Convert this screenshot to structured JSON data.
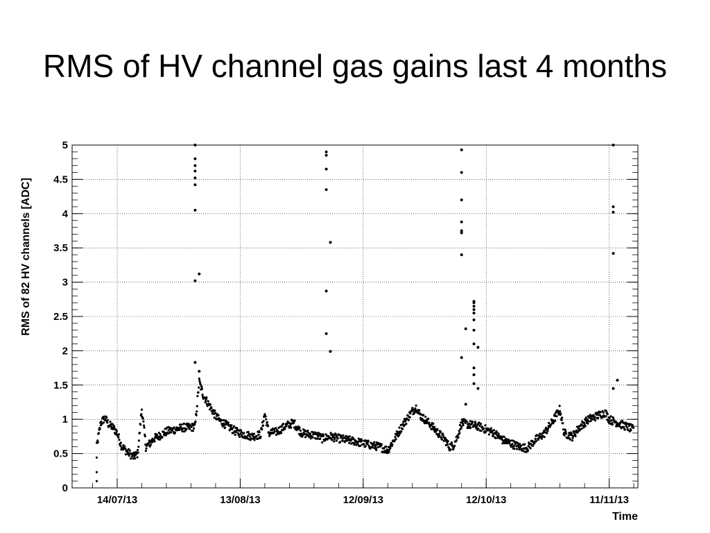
{
  "slide": {
    "title": "RMS of HV channel gas gains last 4 months"
  },
  "chart_data": {
    "type": "scatter",
    "title": "",
    "xlabel": "Time",
    "ylabel": "RMS of 82 HV channels [ADC]",
    "x_type": "date",
    "xlim": [
      "2013-07-03",
      "2013-11-18"
    ],
    "ylim": [
      0,
      5
    ],
    "yticks": [
      0,
      0.5,
      1,
      1.5,
      2,
      2.5,
      3,
      3.5,
      4,
      4.5,
      5
    ],
    "ytick_labels": [
      "0",
      "0.5",
      "1",
      "1.5",
      "2",
      "2.5",
      "3",
      "3.5",
      "4",
      "4.5",
      "5"
    ],
    "xticks": [
      "2013-07-14",
      "2013-08-13",
      "2013-09-12",
      "2013-10-12",
      "2013-11-11"
    ],
    "xtick_labels": [
      "14/07/13",
      "13/08/13",
      "12/09/13",
      "12/10/13",
      "11/11/13"
    ],
    "grid": true,
    "marker_color": "#000000",
    "series": [
      {
        "baseline": [
          [
            "2013-07-09",
            0.08
          ],
          [
            "2013-07-09",
            0.6
          ],
          [
            "2013-07-10",
            0.95
          ],
          [
            "2013-07-11",
            1.02
          ],
          [
            "2013-07-12",
            0.92
          ],
          [
            "2013-07-13",
            0.88
          ],
          [
            "2013-07-14",
            0.8
          ],
          [
            "2013-07-15",
            0.62
          ],
          [
            "2013-07-16",
            0.55
          ],
          [
            "2013-07-17",
            0.5
          ],
          [
            "2013-07-18",
            0.45
          ],
          [
            "2013-07-19",
            0.5
          ],
          [
            "2013-07-20",
            1.15
          ],
          [
            "2013-07-21",
            0.6
          ],
          [
            "2013-07-22",
            0.65
          ],
          [
            "2013-07-23",
            0.72
          ],
          [
            "2013-07-24",
            0.75
          ],
          [
            "2013-07-26",
            0.82
          ],
          [
            "2013-07-28",
            0.85
          ],
          [
            "2013-07-30",
            0.88
          ],
          [
            "2013-08-01",
            0.88
          ],
          [
            "2013-08-02",
            0.9
          ],
          [
            "2013-08-03",
            1.55
          ],
          [
            "2013-08-04",
            1.35
          ],
          [
            "2013-08-05",
            1.25
          ],
          [
            "2013-08-06",
            1.15
          ],
          [
            "2013-08-07",
            1.05
          ],
          [
            "2013-08-08",
            0.98
          ],
          [
            "2013-08-10",
            0.9
          ],
          [
            "2013-08-12",
            0.82
          ],
          [
            "2013-08-14",
            0.78
          ],
          [
            "2013-08-16",
            0.75
          ],
          [
            "2013-08-18",
            0.78
          ],
          [
            "2013-08-19",
            1.08
          ],
          [
            "2013-08-20",
            0.8
          ],
          [
            "2013-08-22",
            0.82
          ],
          [
            "2013-08-24",
            0.9
          ],
          [
            "2013-08-26",
            0.95
          ],
          [
            "2013-08-28",
            0.8
          ],
          [
            "2013-08-30",
            0.78
          ],
          [
            "2013-09-01",
            0.76
          ],
          [
            "2013-09-02",
            0.72
          ],
          [
            "2013-09-04",
            0.75
          ],
          [
            "2013-09-06",
            0.72
          ],
          [
            "2013-09-08",
            0.7
          ],
          [
            "2013-09-10",
            0.68
          ],
          [
            "2013-09-12",
            0.65
          ],
          [
            "2013-09-14",
            0.62
          ],
          [
            "2013-09-16",
            0.6
          ],
          [
            "2013-09-18",
            0.55
          ],
          [
            "2013-09-20",
            0.75
          ],
          [
            "2013-09-22",
            0.95
          ],
          [
            "2013-09-24",
            1.12
          ],
          [
            "2013-09-25",
            1.18
          ],
          [
            "2013-09-26",
            1.05
          ],
          [
            "2013-09-28",
            0.95
          ],
          [
            "2013-09-30",
            0.82
          ],
          [
            "2013-10-02",
            0.7
          ],
          [
            "2013-10-03",
            0.6
          ],
          [
            "2013-10-04",
            0.62
          ],
          [
            "2013-10-05",
            0.75
          ],
          [
            "2013-10-06",
            0.95
          ],
          [
            "2013-10-08",
            0.92
          ],
          [
            "2013-10-10",
            0.9
          ],
          [
            "2013-10-12",
            0.85
          ],
          [
            "2013-10-14",
            0.8
          ],
          [
            "2013-10-16",
            0.7
          ],
          [
            "2013-10-18",
            0.65
          ],
          [
            "2013-10-20",
            0.6
          ],
          [
            "2013-10-22",
            0.58
          ],
          [
            "2013-10-24",
            0.7
          ],
          [
            "2013-10-26",
            0.78
          ],
          [
            "2013-10-28",
            0.95
          ],
          [
            "2013-10-30",
            1.15
          ],
          [
            "2013-10-31",
            0.8
          ],
          [
            "2013-11-02",
            0.75
          ],
          [
            "2013-11-04",
            0.9
          ],
          [
            "2013-11-06",
            1.0
          ],
          [
            "2013-11-08",
            1.05
          ],
          [
            "2013-11-10",
            1.1
          ],
          [
            "2013-11-11",
            1.0
          ],
          [
            "2013-11-13",
            0.95
          ],
          [
            "2013-11-15",
            0.9
          ],
          [
            "2013-11-17",
            0.85
          ]
        ],
        "outliers": [
          [
            "2013-08-02",
            5.0
          ],
          [
            "2013-08-02",
            4.8
          ],
          [
            "2013-08-02",
            4.7
          ],
          [
            "2013-08-02",
            4.62
          ],
          [
            "2013-08-02",
            4.52
          ],
          [
            "2013-08-02",
            4.42
          ],
          [
            "2013-08-02",
            4.05
          ],
          [
            "2013-08-02",
            3.02
          ],
          [
            "2013-08-03",
            3.12
          ],
          [
            "2013-08-02",
            1.83
          ],
          [
            "2013-08-03",
            1.7
          ],
          [
            "2013-09-03",
            4.9
          ],
          [
            "2013-09-03",
            4.85
          ],
          [
            "2013-09-03",
            4.65
          ],
          [
            "2013-09-03",
            4.35
          ],
          [
            "2013-09-03",
            2.87
          ],
          [
            "2013-09-03",
            2.25
          ],
          [
            "2013-09-04",
            3.58
          ],
          [
            "2013-09-04",
            1.99
          ],
          [
            "2013-10-06",
            4.93
          ],
          [
            "2013-10-06",
            4.6
          ],
          [
            "2013-10-06",
            4.2
          ],
          [
            "2013-10-06",
            3.88
          ],
          [
            "2013-10-06",
            3.75
          ],
          [
            "2013-10-06",
            3.72
          ],
          [
            "2013-10-06",
            3.4
          ],
          [
            "2013-10-06",
            1.9
          ],
          [
            "2013-10-07",
            2.32
          ],
          [
            "2013-10-07",
            1.22
          ],
          [
            "2013-10-09",
            2.1
          ],
          [
            "2013-10-09",
            2.3
          ],
          [
            "2013-10-09",
            2.45
          ],
          [
            "2013-10-09",
            2.55
          ],
          [
            "2013-10-09",
            2.6
          ],
          [
            "2013-10-09",
            2.65
          ],
          [
            "2013-10-09",
            2.7
          ],
          [
            "2013-10-09",
            2.72
          ],
          [
            "2013-10-09",
            1.75
          ],
          [
            "2013-10-09",
            1.65
          ],
          [
            "2013-10-09",
            1.52
          ],
          [
            "2013-10-10",
            2.05
          ],
          [
            "2013-10-10",
            1.45
          ],
          [
            "2013-11-12",
            5.0
          ],
          [
            "2013-11-12",
            4.1
          ],
          [
            "2013-11-12",
            4.02
          ],
          [
            "2013-11-12",
            3.42
          ],
          [
            "2013-11-12",
            1.45
          ],
          [
            "2013-11-13",
            1.57
          ]
        ]
      }
    ]
  }
}
